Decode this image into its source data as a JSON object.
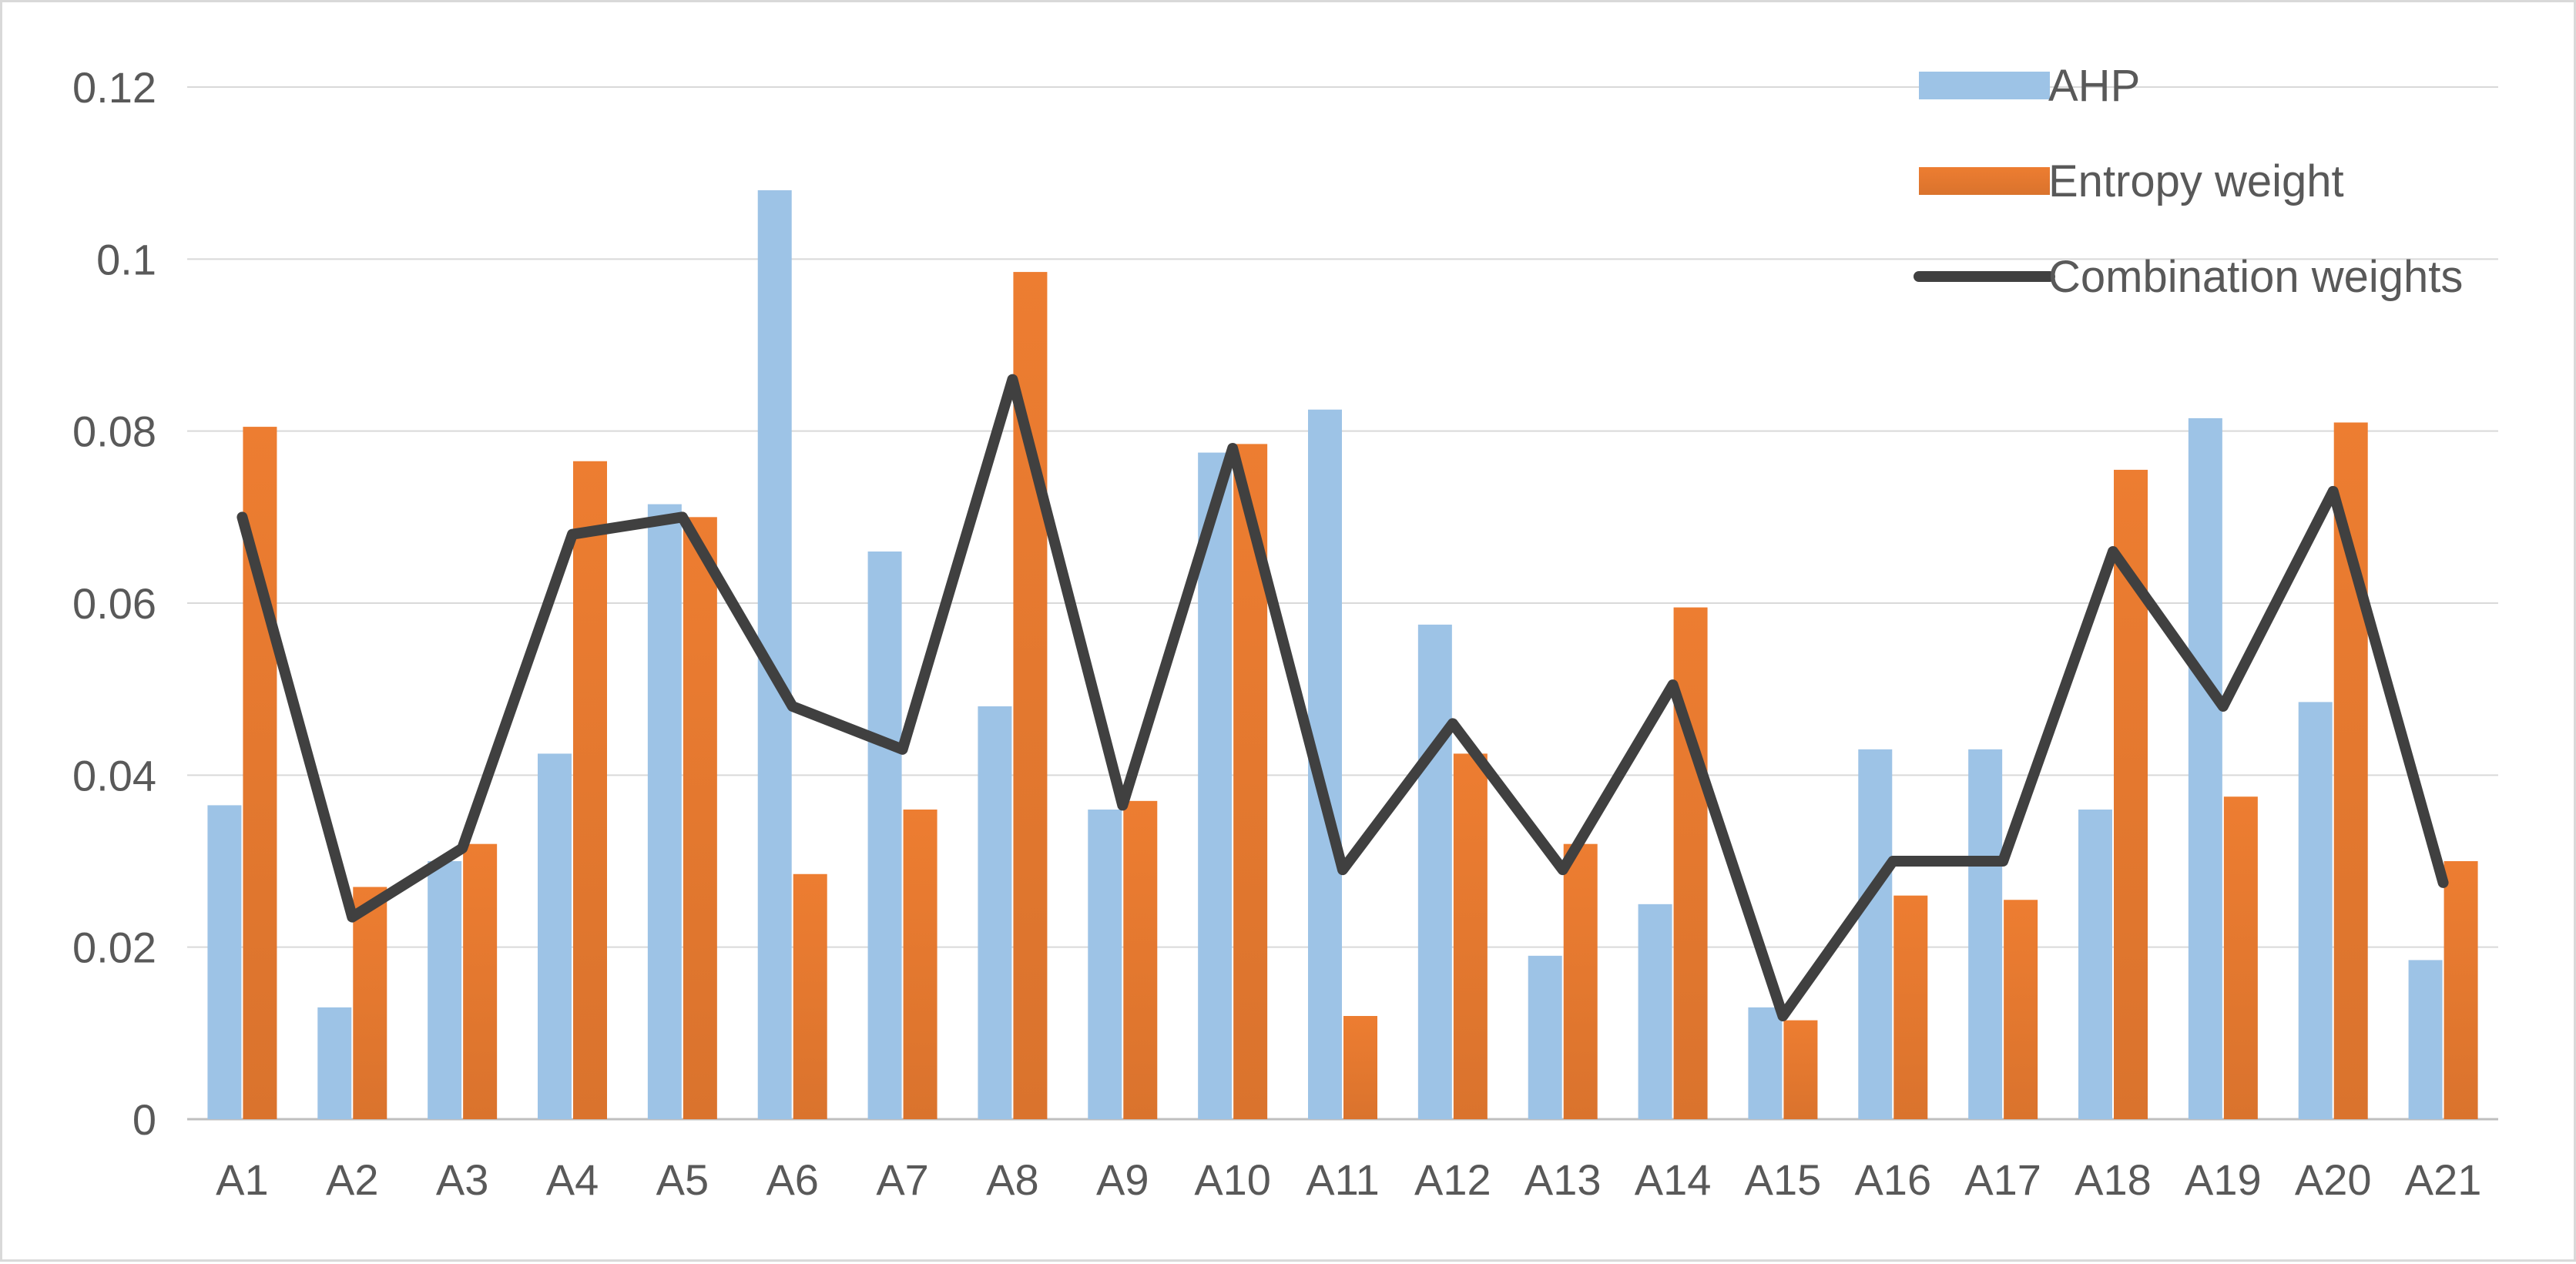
{
  "chart_data": {
    "type": "bar",
    "categories": [
      "A1",
      "A2",
      "A3",
      "A4",
      "A5",
      "A6",
      "A7",
      "A8",
      "A9",
      "A10",
      "A11",
      "A12",
      "A13",
      "A14",
      "A15",
      "A16",
      "A17",
      "A18",
      "A19",
      "A20",
      "A21"
    ],
    "series": [
      {
        "name": "AHP",
        "kind": "bar",
        "color": "#9dc3e6",
        "values": [
          0.0365,
          0.013,
          0.03,
          0.0425,
          0.0715,
          0.108,
          0.066,
          0.048,
          0.036,
          0.0775,
          0.0825,
          0.0575,
          0.019,
          0.025,
          0.013,
          0.043,
          0.043,
          0.036,
          0.0815,
          0.0485,
          0.0185
        ]
      },
      {
        "name": "Entropy weight",
        "kind": "bar",
        "color": "#ed7d31",
        "values": [
          0.0805,
          0.027,
          0.032,
          0.0765,
          0.07,
          0.0285,
          0.036,
          0.0985,
          0.037,
          0.0785,
          0.012,
          0.0425,
          0.032,
          0.0595,
          0.0115,
          0.026,
          0.0255,
          0.0755,
          0.0375,
          0.081,
          0.03
        ]
      },
      {
        "name": "Combination weights",
        "kind": "line",
        "color": "#404040",
        "values": [
          0.07,
          0.0235,
          0.0315,
          0.068,
          0.07,
          0.048,
          0.043,
          0.086,
          0.0365,
          0.078,
          0.029,
          0.046,
          0.029,
          0.0505,
          0.012,
          0.03,
          0.03,
          0.066,
          0.048,
          0.073,
          0.0275
        ]
      }
    ],
    "y_ticks": [
      "0",
      "0.02",
      "0.04",
      "0.06",
      "0.08",
      "0.1",
      "0.12"
    ],
    "ylim": [
      0,
      0.12
    ],
    "grid": true,
    "legend_position": "top-right",
    "title": "",
    "xlabel": "",
    "ylabel": ""
  }
}
